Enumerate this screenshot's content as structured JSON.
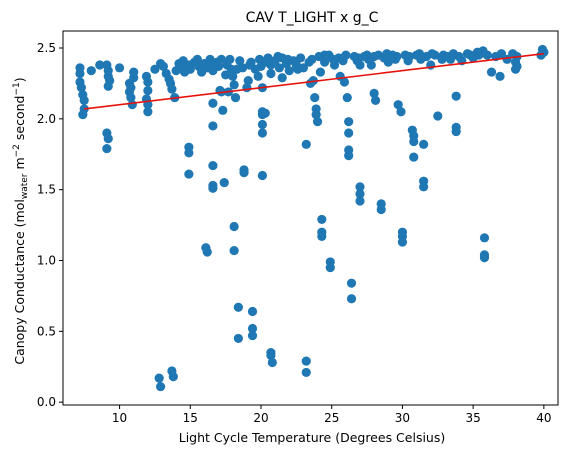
{
  "chart_data": {
    "type": "scatter",
    "title": "CAV T_LIGHT x g_C",
    "xlabel": "Light Cycle Temperature (Degrees Celsius)",
    "ylabel": {
      "prefix": "Canopy Conductance (mol",
      "sub": "water",
      "mid": " m",
      "sup1": "−2",
      "mid2": " second",
      "sup2": "−1",
      "suffix": ")"
    },
    "xlim": [
      6,
      41
    ],
    "ylim": [
      -0.02,
      2.62
    ],
    "xticks": [
      10,
      15,
      20,
      25,
      30,
      35,
      40
    ],
    "yticks": [
      0.0,
      0.5,
      1.0,
      1.5,
      2.0,
      2.5
    ],
    "ytick_labels": [
      "0.0",
      "0.5",
      "1.0",
      "1.5",
      "2.0",
      "2.5"
    ],
    "grid": false,
    "marker_color": "#1f77b4",
    "fit_color": "#e8120c",
    "fit_line": {
      "x": [
        7.5,
        40
      ],
      "y": [
        2.07,
        2.46
      ]
    },
    "points": [
      [
        7.2,
        2.36
      ],
      [
        7.2,
        2.32
      ],
      [
        7.2,
        2.26
      ],
      [
        7.3,
        2.22
      ],
      [
        7.4,
        2.17
      ],
      [
        7.5,
        2.13
      ],
      [
        7.5,
        2.07
      ],
      [
        7.4,
        2.03
      ],
      [
        9.1,
        2.38
      ],
      [
        9.2,
        2.34
      ],
      [
        9.2,
        2.3
      ],
      [
        9.3,
        2.27
      ],
      [
        9.2,
        2.23
      ],
      [
        9.1,
        1.9
      ],
      [
        9.2,
        1.86
      ],
      [
        9.1,
        1.79
      ],
      [
        10.7,
        2.25
      ],
      [
        10.8,
        2.22
      ],
      [
        10.7,
        2.19
      ],
      [
        10.8,
        2.15
      ],
      [
        10.9,
        2.1
      ],
      [
        11.0,
        2.29
      ],
      [
        11.0,
        2.33
      ],
      [
        11.9,
        2.3
      ],
      [
        12.0,
        2.26
      ],
      [
        12.0,
        2.2
      ],
      [
        11.9,
        2.14
      ],
      [
        12.0,
        2.1
      ],
      [
        12.0,
        2.05
      ],
      [
        12.5,
        2.35
      ],
      [
        12.9,
        2.39
      ],
      [
        12.8,
        0.17
      ],
      [
        12.9,
        0.11
      ],
      [
        13.1,
        2.37
      ],
      [
        13.3,
        2.32
      ],
      [
        13.5,
        2.28
      ],
      [
        13.6,
        2.25
      ],
      [
        13.7,
        0.22
      ],
      [
        13.8,
        0.18
      ],
      [
        13.7,
        2.21
      ],
      [
        13.9,
        2.15
      ],
      [
        14.0,
        2.34
      ],
      [
        14.2,
        2.39
      ],
      [
        14.4,
        2.36
      ],
      [
        14.6,
        2.33
      ],
      [
        14.9,
        2.38
      ],
      [
        15.0,
        2.35
      ],
      [
        14.9,
        1.8
      ],
      [
        14.9,
        1.76
      ],
      [
        14.9,
        1.61
      ],
      [
        15.3,
        2.4
      ],
      [
        15.6,
        2.37
      ],
      [
        15.8,
        2.33
      ],
      [
        16.0,
        2.39
      ],
      [
        16.1,
        1.09
      ],
      [
        16.2,
        1.06
      ],
      [
        16.4,
        2.42
      ],
      [
        16.5,
        2.38
      ],
      [
        16.6,
        2.34
      ],
      [
        16.6,
        2.11
      ],
      [
        16.6,
        1.95
      ],
      [
        16.6,
        1.67
      ],
      [
        16.6,
        1.53
      ],
      [
        16.6,
        1.51
      ],
      [
        16.9,
        2.4
      ],
      [
        17.0,
        2.37
      ],
      [
        17.1,
        2.2
      ],
      [
        17.2,
        2.19
      ],
      [
        17.3,
        2.06
      ],
      [
        17.4,
        1.55
      ],
      [
        17.5,
        2.31
      ],
      [
        17.6,
        2.38
      ],
      [
        17.8,
        2.42
      ],
      [
        17.9,
        2.35
      ],
      [
        18.0,
        2.3
      ],
      [
        18.1,
        2.24
      ],
      [
        18.2,
        2.15
      ],
      [
        18.1,
        1.24
      ],
      [
        18.1,
        1.07
      ],
      [
        18.4,
        0.67
      ],
      [
        18.4,
        0.45
      ],
      [
        18.5,
        2.41
      ],
      [
        18.7,
        2.36
      ],
      [
        18.8,
        1.64
      ],
      [
        18.8,
        1.62
      ],
      [
        19.0,
        2.22
      ],
      [
        19.1,
        2.27
      ],
      [
        19.3,
        2.4
      ],
      [
        19.4,
        0.64
      ],
      [
        19.4,
        0.52
      ],
      [
        19.4,
        0.47
      ],
      [
        19.6,
        2.35
      ],
      [
        19.8,
        2.3
      ],
      [
        19.9,
        2.42
      ],
      [
        20.0,
        2.37
      ],
      [
        20.1,
        2.05
      ],
      [
        20.1,
        2.03
      ],
      [
        20.1,
        1.96
      ],
      [
        20.1,
        1.9
      ],
      [
        20.1,
        1.6
      ],
      [
        20.3,
        2.04
      ],
      [
        20.5,
        2.43
      ],
      [
        20.7,
        2.38
      ],
      [
        20.7,
        2.32
      ],
      [
        20.7,
        0.35
      ],
      [
        20.7,
        0.33
      ],
      [
        20.8,
        0.28
      ],
      [
        21.0,
        2.41
      ],
      [
        21.3,
        2.36
      ],
      [
        21.5,
        2.43
      ],
      [
        21.8,
        2.39
      ],
      [
        22.0,
        2.34
      ],
      [
        22.3,
        2.41
      ],
      [
        22.5,
        2.38
      ],
      [
        22.8,
        2.43
      ],
      [
        23.0,
        2.36
      ],
      [
        23.2,
        1.82
      ],
      [
        23.2,
        0.29
      ],
      [
        23.2,
        0.21
      ],
      [
        23.4,
        2.4
      ],
      [
        23.7,
        2.27
      ],
      [
        23.8,
        2.15
      ],
      [
        23.9,
        2.07
      ],
      [
        23.9,
        2.03
      ],
      [
        24.0,
        1.98
      ],
      [
        24.1,
        2.44
      ],
      [
        24.2,
        2.33
      ],
      [
        24.3,
        1.29
      ],
      [
        24.3,
        1.2
      ],
      [
        24.3,
        1.17
      ],
      [
        24.5,
        2.4
      ],
      [
        24.8,
        2.45
      ],
      [
        24.9,
        0.99
      ],
      [
        24.9,
        0.95
      ],
      [
        25.2,
        2.38
      ],
      [
        25.5,
        2.43
      ],
      [
        25.8,
        2.41
      ],
      [
        25.9,
        2.26
      ],
      [
        26.1,
        2.15
      ],
      [
        26.2,
        1.98
      ],
      [
        26.2,
        1.9
      ],
      [
        26.2,
        1.78
      ],
      [
        26.2,
        1.74
      ],
      [
        26.4,
        0.84
      ],
      [
        26.4,
        0.73
      ],
      [
        26.6,
        2.44
      ],
      [
        26.8,
        2.41
      ],
      [
        27.0,
        2.38
      ],
      [
        27.0,
        1.52
      ],
      [
        27.0,
        1.47
      ],
      [
        27.0,
        1.42
      ],
      [
        27.3,
        2.44
      ],
      [
        27.6,
        2.42
      ],
      [
        27.8,
        2.38
      ],
      [
        28.0,
        2.18
      ],
      [
        28.1,
        2.13
      ],
      [
        28.3,
        2.45
      ],
      [
        28.5,
        1.4
      ],
      [
        28.5,
        1.36
      ],
      [
        28.7,
        2.43
      ],
      [
        29.0,
        2.4
      ],
      [
        29.3,
        2.45
      ],
      [
        29.5,
        2.42
      ],
      [
        29.7,
        2.1
      ],
      [
        29.9,
        2.05
      ],
      [
        30.0,
        1.2
      ],
      [
        30.0,
        1.17
      ],
      [
        30.0,
        1.13
      ],
      [
        30.2,
        2.45
      ],
      [
        30.4,
        2.41
      ],
      [
        30.7,
        1.92
      ],
      [
        30.8,
        1.88
      ],
      [
        30.8,
        1.84
      ],
      [
        30.8,
        1.73
      ],
      [
        31.0,
        2.45
      ],
      [
        31.3,
        2.42
      ],
      [
        31.5,
        1.56
      ],
      [
        31.5,
        1.52
      ],
      [
        31.5,
        1.82
      ],
      [
        31.7,
        2.44
      ],
      [
        32.0,
        2.38
      ],
      [
        32.3,
        2.45
      ],
      [
        32.5,
        2.02
      ],
      [
        32.8,
        2.42
      ],
      [
        33.2,
        2.44
      ],
      [
        33.6,
        2.46
      ],
      [
        33.8,
        2.16
      ],
      [
        33.8,
        1.94
      ],
      [
        33.8,
        1.91
      ],
      [
        34.2,
        2.41
      ],
      [
        34.6,
        2.46
      ],
      [
        35.0,
        2.43
      ],
      [
        35.4,
        2.45
      ],
      [
        35.7,
        2.48
      ],
      [
        35.8,
        1.16
      ],
      [
        35.8,
        1.04
      ],
      [
        35.8,
        1.02
      ],
      [
        36.3,
        2.33
      ],
      [
        36.6,
        2.44
      ],
      [
        36.9,
        2.3
      ],
      [
        37.0,
        2.46
      ],
      [
        37.4,
        2.42
      ],
      [
        38.1,
        2.44
      ],
      [
        38.1,
        2.37
      ],
      [
        39.9,
        2.49
      ],
      [
        40.0,
        2.47
      ],
      [
        8.0,
        2.34
      ],
      [
        8.6,
        2.38
      ],
      [
        10.0,
        2.36
      ],
      [
        14.5,
        2.41
      ],
      [
        15.5,
        2.42
      ],
      [
        16.2,
        2.36
      ],
      [
        17.2,
        2.42
      ],
      [
        18.3,
        2.35
      ],
      [
        19.2,
        2.38
      ],
      [
        20.4,
        2.4
      ],
      [
        21.2,
        2.44
      ],
      [
        21.9,
        2.42
      ],
      [
        22.6,
        2.35
      ],
      [
        23.6,
        2.42
      ],
      [
        24.5,
        2.45
      ],
      [
        25.1,
        2.42
      ],
      [
        26.0,
        2.45
      ],
      [
        26.9,
        2.43
      ],
      [
        27.5,
        2.45
      ],
      [
        28.0,
        2.44
      ],
      [
        28.9,
        2.46
      ],
      [
        29.6,
        2.44
      ],
      [
        30.5,
        2.44
      ],
      [
        31.2,
        2.46
      ],
      [
        32.1,
        2.46
      ],
      [
        32.9,
        2.45
      ],
      [
        33.4,
        2.42
      ],
      [
        34.0,
        2.44
      ],
      [
        34.8,
        2.45
      ],
      [
        35.3,
        2.47
      ],
      [
        36.0,
        2.45
      ],
      [
        37.8,
        2.46
      ],
      [
        38.0,
        2.4
      ],
      [
        38.0,
        2.35
      ],
      [
        39.8,
        2.45
      ],
      [
        17.7,
        2.19
      ],
      [
        23.5,
        2.25
      ],
      [
        21.5,
        2.29
      ],
      [
        25.6,
        2.3
      ],
      [
        20.1,
        2.22
      ]
    ]
  }
}
